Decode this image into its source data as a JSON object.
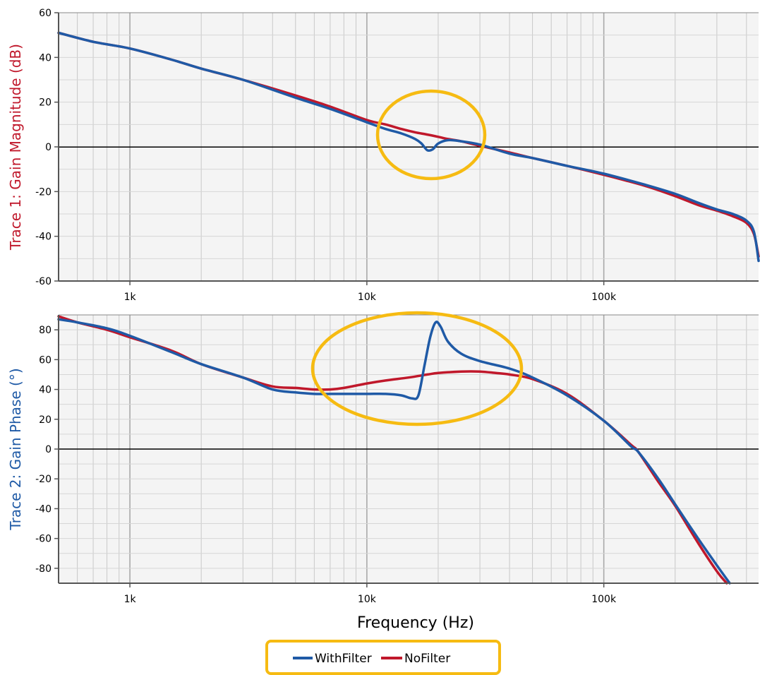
{
  "chart_data": [
    {
      "type": "line",
      "ylabel": "Trace 1: Gain Magnitude (dB)",
      "xlabel": "",
      "x_scale": "log",
      "xlim": [
        500,
        450000
      ],
      "ylim": [
        -60,
        60
      ],
      "yticks": [
        60,
        40,
        20,
        0,
        -20,
        -40,
        -60
      ],
      "xticks": [
        1000,
        10000,
        100000
      ],
      "xtick_labels": [
        "1k",
        "10k",
        "100k"
      ],
      "grid": true,
      "series": [
        {
          "name": "WithFilter",
          "x": [
            500,
            700,
            1000,
            1500,
            2000,
            3000,
            5000,
            7000,
            10000,
            12000,
            14000,
            16000,
            17000,
            18000,
            19000,
            20000,
            22000,
            25000,
            30000,
            40000,
            50000,
            70000,
            100000,
            150000,
            200000,
            250000,
            300000,
            350000,
            400000,
            430000,
            450000
          ],
          "y": [
            51,
            47,
            44,
            39,
            35,
            30,
            22,
            17,
            11,
            8,
            6,
            3.5,
            1.5,
            -1.5,
            -1,
            1.5,
            3,
            2.5,
            1,
            -3,
            -5,
            -8.5,
            -12,
            -17,
            -21,
            -25,
            -28,
            -30,
            -33,
            -38,
            -51
          ]
        },
        {
          "name": "NoFilter",
          "x": [
            500,
            700,
            1000,
            1500,
            2000,
            3000,
            5000,
            7000,
            10000,
            12000,
            14000,
            16000,
            18000,
            20000,
            22000,
            25000,
            30000,
            40000,
            50000,
            70000,
            100000,
            150000,
            200000,
            250000,
            300000,
            350000,
            400000,
            430000,
            450000
          ],
          "y": [
            51,
            47,
            44,
            39,
            35,
            30,
            23,
            18,
            12,
            10,
            8,
            6.5,
            5.5,
            4.5,
            3.5,
            2.5,
            0.5,
            -2.5,
            -5,
            -8.5,
            -12.5,
            -17.5,
            -22,
            -26,
            -28.5,
            -31,
            -34,
            -39,
            -49
          ]
        }
      ],
      "annotations": [
        "circle around dip near 18k"
      ]
    },
    {
      "type": "line",
      "ylabel": "Trace 2: Gain Phase (°)",
      "xlabel": "Frequency (Hz)",
      "x_scale": "log",
      "xlim": [
        500,
        450000
      ],
      "ylim": [
        -90,
        90
      ],
      "yticks": [
        80,
        60,
        40,
        20,
        0,
        -20,
        -40,
        -60,
        -80
      ],
      "xticks": [
        1000,
        10000,
        100000
      ],
      "xtick_labels": [
        "1k",
        "10k",
        "100k"
      ],
      "grid": true,
      "series": [
        {
          "name": "WithFilter",
          "x": [
            500,
            600,
            800,
            1000,
            1500,
            2000,
            3000,
            4000,
            5000,
            6000,
            7000,
            8000,
            10000,
            12000,
            14000,
            15500,
            16500,
            17500,
            18500,
            19500,
            20500,
            22000,
            25000,
            30000,
            40000,
            50000,
            70000,
            100000,
            130000,
            140000,
            170000,
            200000,
            250000,
            300000,
            340000
          ],
          "y": [
            87,
            85,
            81,
            76,
            65,
            57,
            48,
            40,
            38,
            37,
            37,
            37,
            37,
            37,
            36,
            34,
            36,
            56,
            75,
            85,
            82,
            72,
            64,
            59,
            54,
            48,
            36,
            19,
            2,
            -2,
            -20,
            -37,
            -60,
            -78,
            -92
          ]
        },
        {
          "name": "NoFilter",
          "x": [
            500,
            600,
            800,
            1000,
            1500,
            2000,
            3000,
            4000,
            5000,
            6000,
            7000,
            8000,
            10000,
            12000,
            15000,
            18000,
            20000,
            25000,
            30000,
            35000,
            40000,
            50000,
            70000,
            100000,
            130000,
            140000,
            170000,
            200000,
            250000,
            300000,
            330000
          ],
          "y": [
            89,
            85,
            80,
            75,
            66,
            57,
            48,
            42,
            41,
            40,
            40,
            41,
            44,
            46,
            48,
            50,
            51,
            52,
            52,
            51,
            50,
            47,
            37,
            19,
            3,
            -2,
            -22,
            -38,
            -63,
            -82,
            -92
          ]
        }
      ],
      "annotations": [
        "ellipse around phase bump near 20k"
      ]
    }
  ],
  "legend": {
    "items": [
      {
        "name": "WithFilter",
        "color": "#1f5aa6"
      },
      {
        "name": "NoFilter",
        "color": "#c0182b"
      }
    ],
    "placement": "bottom-center"
  },
  "colors": {
    "with_filter": "#1f5aa6",
    "no_filter": "#c0182b",
    "highlight": "#f6bb12",
    "plot_bg": "#f4f4f4",
    "grid": "#c8c8c8"
  }
}
